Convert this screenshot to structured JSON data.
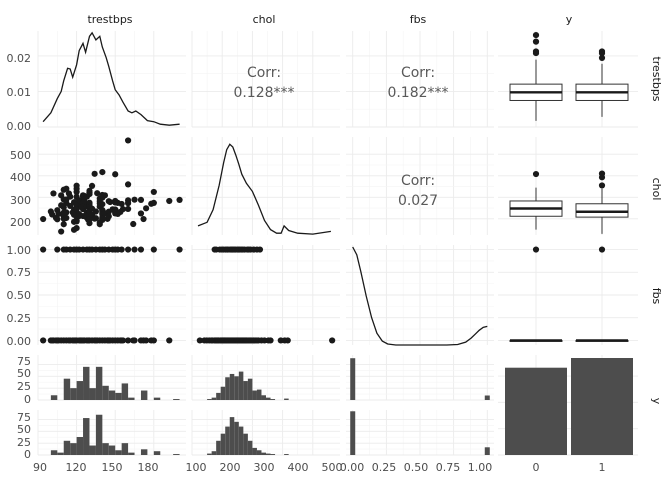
{
  "chart_data": {
    "type": "scatter",
    "kind": "pairs-plot",
    "variables": [
      "trestbps",
      "chol",
      "fbs",
      "y"
    ],
    "row_labels": [
      "trestbps",
      "chol",
      "fbs",
      "y"
    ],
    "y_levels": [
      "0",
      "1"
    ],
    "correlations": [
      {
        "vars": [
          "trestbps",
          "chol"
        ],
        "label": "Corr:",
        "value": "0.128***"
      },
      {
        "vars": [
          "trestbps",
          "fbs"
        ],
        "label": "Corr:",
        "value": "0.182***"
      },
      {
        "vars": [
          "chol",
          "fbs"
        ],
        "label": "Corr:",
        "value": "0.027"
      }
    ],
    "axes": {
      "trestbps": {
        "range": [
          90,
          205
        ],
        "ticks": [
          "90",
          "120",
          "150",
          "180"
        ],
        "tick_values": [
          90,
          120,
          150,
          180
        ]
      },
      "chol": {
        "range": [
          100,
          590
        ],
        "ticks": [
          "100",
          "200",
          "300",
          "400",
          "500"
        ],
        "tick_values": [
          100,
          200,
          300,
          400,
          500
        ]
      },
      "fbs": {
        "range": [
          -0.05,
          1.05
        ],
        "ticks": [
          "0.00",
          "0.25",
          "0.50",
          "0.75",
          "1.00"
        ],
        "tick_values": [
          0,
          0.25,
          0.5,
          0.75,
          1
        ]
      },
      "y": {
        "ticks": [
          "0",
          "1"
        ]
      }
    },
    "row_axes": {
      "trestbps_density": {
        "range": [
          0,
          0.027
        ],
        "ticks": [
          "0.00",
          "0.01",
          "0.02"
        ],
        "tick_values": [
          0,
          0.01,
          0.02
        ]
      },
      "chol_vs_trestbps": {
        "range": [
          125,
          580
        ],
        "ticks": [
          "200",
          "300",
          "400",
          "500"
        ],
        "tick_values": [
          200,
          300,
          400,
          500
        ]
      },
      "fbs_vs_trestbps": {
        "range": [
          -0.05,
          1.05
        ],
        "ticks": [
          "0.00",
          "0.25",
          "0.50",
          "0.75",
          "1.00"
        ],
        "tick_values": [
          0,
          0.25,
          0.5,
          0.75,
          1
        ]
      },
      "y_hist": {
        "range": [
          0,
          95
        ],
        "ticks": [
          "0",
          "25",
          "50",
          "75"
        ],
        "tick_values": [
          0,
          25,
          50,
          75
        ]
      }
    },
    "trestbps_density": {
      "x": [
        94,
        100,
        105,
        108,
        110,
        113,
        115,
        117,
        120,
        122,
        125,
        127,
        130,
        132,
        135,
        138,
        140,
        143,
        145,
        148,
        150,
        153,
        156,
        160,
        163,
        166,
        170,
        175,
        180,
        185,
        192,
        200
      ],
      "y": [
        0.0015,
        0.004,
        0.008,
        0.01,
        0.013,
        0.0165,
        0.0163,
        0.014,
        0.0175,
        0.0215,
        0.0235,
        0.021,
        0.0255,
        0.0265,
        0.0245,
        0.0255,
        0.0225,
        0.0195,
        0.017,
        0.013,
        0.0105,
        0.009,
        0.007,
        0.0045,
        0.004,
        0.0045,
        0.0035,
        0.0018,
        0.0015,
        0.0008,
        0.0005,
        0.0008
      ]
    },
    "chol_density": {
      "x": [
        120,
        150,
        170,
        190,
        205,
        215,
        225,
        235,
        245,
        255,
        265,
        280,
        300,
        320,
        340,
        360,
        380,
        395,
        405,
        420,
        450,
        500,
        560
      ],
      "y": [
        0.1,
        0.14,
        0.28,
        0.55,
        0.8,
        0.94,
        1.0,
        0.97,
        0.88,
        0.78,
        0.67,
        0.57,
        0.48,
        0.33,
        0.16,
        0.06,
        0.02,
        0.02,
        0.1,
        0.05,
        0.02,
        0.01,
        0.04
      ]
    },
    "fbs_density": {
      "x": [
        0,
        0.03,
        0.06,
        0.1,
        0.14,
        0.18,
        0.22,
        0.26,
        0.32,
        0.4,
        0.5,
        0.6,
        0.7,
        0.78,
        0.84,
        0.88,
        0.91,
        0.94,
        0.97,
        1.0
      ],
      "y": [
        1.0,
        0.92,
        0.75,
        0.5,
        0.28,
        0.12,
        0.04,
        0.01,
        0.0,
        0.0,
        0.0,
        0.0,
        0.0,
        0.005,
        0.03,
        0.07,
        0.11,
        0.15,
        0.18,
        0.19
      ]
    },
    "boxplots": {
      "trestbps": {
        "0": {
          "min": 95,
          "q1": 120,
          "median": 130,
          "q3": 140,
          "max": 170,
          "outliers": [
            178,
            180,
            192,
            200
          ]
        },
        "1": {
          "min": 100,
          "q1": 120,
          "median": 130,
          "q3": 140,
          "max": 165,
          "outliers": [
            172,
            178,
            180
          ]
        }
      },
      "chol": {
        "0": {
          "min": 150,
          "q1": 212,
          "median": 248,
          "q3": 283,
          "max": 345,
          "outliers": [
            408
          ]
        },
        "1": {
          "min": 130,
          "q1": 208,
          "median": 233,
          "q3": 270,
          "max": 340,
          "outliers": [
            355,
            393,
            410
          ]
        }
      },
      "fbs": {
        "0": {
          "min": 0,
          "q1": 0,
          "median": 0,
          "q3": 0,
          "max": 0,
          "outliers": [
            1
          ]
        },
        "1": {
          "min": 0,
          "q1": 0,
          "median": 0,
          "q3": 0,
          "max": 0,
          "outliers": [
            1
          ]
        }
      }
    },
    "y_counts": {
      "0": 72,
      "1": 80
    },
    "fbs_bar_counts": {
      "0": {
        "0": 65,
        "1": 7
      },
      "1": {
        "0": 68,
        "1": 12
      }
    },
    "trestbps_hist": {
      "breaks": [
        90,
        95,
        100,
        105,
        110,
        115,
        120,
        125,
        130,
        135,
        140,
        145,
        150,
        155,
        160,
        165,
        170,
        175,
        180,
        185,
        190,
        195,
        200
      ],
      "y0": [
        0,
        0,
        10,
        0,
        45,
        25,
        40,
        70,
        25,
        70,
        30,
        20,
        15,
        35,
        5,
        0,
        20,
        0,
        5,
        0,
        0,
        2
      ],
      "y1": [
        0,
        0,
        10,
        5,
        30,
        25,
        38,
        78,
        20,
        85,
        25,
        20,
        10,
        25,
        5,
        0,
        12,
        0,
        8,
        0,
        0,
        2
      ]
    },
    "chol_hist": {
      "breaks": [
        150,
        165,
        180,
        195,
        210,
        225,
        240,
        255,
        270,
        285,
        300,
        315,
        330,
        345,
        360,
        375,
        390,
        405,
        420
      ],
      "y0": [
        2,
        5,
        15,
        28,
        48,
        55,
        50,
        60,
        40,
        45,
        20,
        22,
        10,
        5,
        2,
        0,
        0,
        3
      ],
      "y1": [
        3,
        8,
        30,
        45,
        60,
        80,
        70,
        60,
        45,
        30,
        15,
        10,
        5,
        3,
        2,
        0,
        0,
        2
      ]
    },
    "scatter_trestbps_chol": {
      "points": [
        [
          94,
          199
        ],
        [
          100,
          234
        ],
        [
          101,
          220
        ],
        [
          102,
          318
        ],
        [
          104,
          204
        ],
        [
          105,
          240
        ],
        [
          105,
          198
        ],
        [
          106,
          223
        ],
        [
          108,
          263
        ],
        [
          108,
          309
        ],
        [
          108,
          141
        ],
        [
          110,
          225
        ],
        [
          110,
          214
        ],
        [
          110,
          201
        ],
        [
          110,
          229
        ],
        [
          110,
          254
        ],
        [
          110,
          335
        ],
        [
          110,
          290
        ],
        [
          110,
          175
        ],
        [
          112,
          230
        ],
        [
          112,
          204
        ],
        [
          112,
          290
        ],
        [
          112,
          274
        ],
        [
          112,
          340
        ],
        [
          114,
          318
        ],
        [
          115,
          303
        ],
        [
          115,
          260
        ],
        [
          117,
          230
        ],
        [
          118,
          242
        ],
        [
          118,
          186
        ],
        [
          118,
          277
        ],
        [
          118,
          149
        ],
        [
          118,
          219
        ],
        [
          119,
          235
        ],
        [
          120,
          219
        ],
        [
          120,
          258
        ],
        [
          120,
          188
        ],
        [
          120,
          354
        ],
        [
          120,
          263
        ],
        [
          120,
          193
        ],
        [
          120,
          211
        ],
        [
          120,
          267
        ],
        [
          120,
          325
        ],
        [
          120,
          340
        ],
        [
          120,
          157
        ],
        [
          120,
          302
        ],
        [
          120,
          244
        ],
        [
          122,
          222
        ],
        [
          122,
          286
        ],
        [
          122,
          213
        ],
        [
          123,
          282
        ],
        [
          124,
          261
        ],
        [
          124,
          274
        ],
        [
          124,
          255
        ],
        [
          125,
          213
        ],
        [
          125,
          309
        ],
        [
          125,
          245
        ],
        [
          125,
          249
        ],
        [
          125,
          258
        ],
        [
          125,
          273
        ],
        [
          125,
          304
        ],
        [
          126,
          306
        ],
        [
          126,
          282
        ],
        [
          128,
          205
        ],
        [
          128,
          216
        ],
        [
          128,
          208
        ],
        [
          128,
          259
        ],
        [
          128,
          303
        ],
        [
          128,
          229
        ],
        [
          129,
          196
        ],
        [
          130,
          206
        ],
        [
          130,
          256
        ],
        [
          130,
          250
        ],
        [
          130,
          231
        ],
        [
          130,
          269
        ],
        [
          130,
          322
        ],
        [
          130,
          214
        ],
        [
          130,
          219
        ],
        [
          130,
          330
        ],
        [
          130,
          263
        ],
        [
          130,
          275
        ],
        [
          130,
          253
        ],
        [
          130,
          236
        ],
        [
          130,
          197
        ],
        [
          130,
          180
        ],
        [
          130,
          234
        ],
        [
          130,
          315
        ],
        [
          132,
          207
        ],
        [
          132,
          247
        ],
        [
          132,
          218
        ],
        [
          132,
          353
        ],
        [
          134,
          409
        ],
        [
          134,
          201
        ],
        [
          135,
          234
        ],
        [
          135,
          203
        ],
        [
          136,
          319
        ],
        [
          138,
          183
        ],
        [
          138,
          271
        ],
        [
          138,
          175
        ],
        [
          138,
          282
        ],
        [
          138,
          294
        ],
        [
          138,
          257
        ],
        [
          140,
          207
        ],
        [
          140,
          298
        ],
        [
          140,
          241
        ],
        [
          140,
          239
        ],
        [
          140,
          226
        ],
        [
          140,
          268
        ],
        [
          140,
          233
        ],
        [
          140,
          199
        ],
        [
          140,
          311
        ],
        [
          140,
          221
        ],
        [
          140,
          195
        ],
        [
          140,
          203
        ],
        [
          140,
          417
        ],
        [
          142,
          309
        ],
        [
          142,
          226
        ],
        [
          144,
          200
        ],
        [
          145,
          233
        ],
        [
          145,
          212
        ],
        [
          145,
          282
        ],
        [
          146,
          278
        ],
        [
          148,
          244
        ],
        [
          150,
          283
        ],
        [
          150,
          243
        ],
        [
          150,
          276
        ],
        [
          150,
          225
        ],
        [
          150,
          232
        ],
        [
          150,
          407
        ],
        [
          150,
          243
        ],
        [
          152,
          274
        ],
        [
          152,
          223
        ],
        [
          154,
          232
        ],
        [
          155,
          269
        ],
        [
          156,
          245
        ],
        [
          160,
          273
        ],
        [
          160,
          246
        ],
        [
          160,
          286
        ],
        [
          160,
          360
        ],
        [
          164,
          176
        ],
        [
          165,
          289
        ],
        [
          170,
          225
        ],
        [
          170,
          288
        ],
        [
          172,
          199
        ],
        [
          174,
          249
        ],
        [
          178,
          270
        ],
        [
          180,
          325
        ],
        [
          180,
          274
        ],
        [
          192,
          283
        ],
        [
          200,
          288
        ],
        [
          160,
          564
        ]
      ]
    },
    "fbs_strip_trestbps": {
      "fbs0": [
        94,
        100,
        101,
        102,
        104,
        105,
        106,
        108,
        110,
        112,
        114,
        115,
        117,
        118,
        119,
        120,
        122,
        123,
        124,
        125,
        126,
        128,
        129,
        130,
        132,
        134,
        135,
        136,
        138,
        140,
        142,
        144,
        145,
        146,
        148,
        150,
        152,
        154,
        155,
        156,
        160,
        164,
        165,
        170,
        172,
        174,
        178,
        180,
        192
      ],
      "fbs1": [
        94,
        105,
        110,
        112,
        115,
        118,
        120,
        122,
        125,
        128,
        130,
        132,
        135,
        138,
        140,
        142,
        145,
        148,
        150,
        152,
        155,
        160,
        165,
        170,
        180,
        200
      ]
    },
    "fbs_strip_chol": {
      "fbs0": [
        126,
        141,
        149,
        157,
        164,
        168,
        175,
        177,
        180,
        183,
        186,
        188,
        193,
        196,
        199,
        201,
        204,
        206,
        208,
        211,
        213,
        216,
        219,
        222,
        225,
        228,
        231,
        234,
        237,
        240,
        243,
        246,
        249,
        252,
        255,
        258,
        261,
        264,
        267,
        270,
        273,
        276,
        279,
        282,
        286,
        290,
        294,
        298,
        303,
        309,
        315,
        320,
        330,
        340,
        353,
        360,
        394,
        407,
        417,
        564
      ],
      "fbs1": [
        175,
        180,
        192,
        199,
        204,
        211,
        216,
        219,
        226,
        230,
        233,
        236,
        240,
        244,
        250,
        254,
        258,
        263,
        268,
        274,
        283,
        288,
        294,
        304,
        315,
        325
      ]
    }
  }
}
